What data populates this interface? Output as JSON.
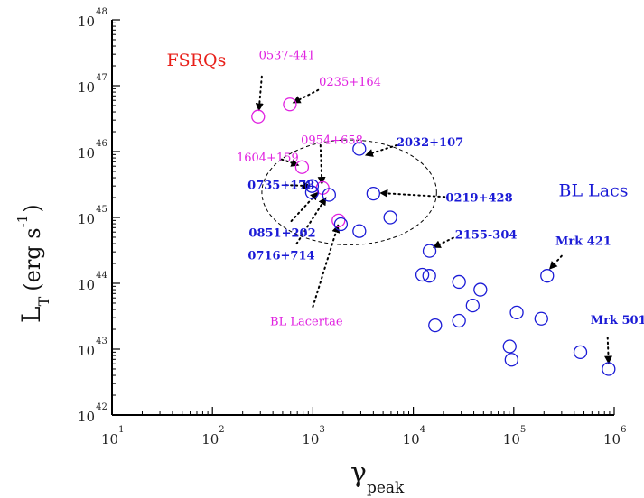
{
  "chart_data": {
    "type": "scatter",
    "title": "",
    "xlabel": "γ",
    "xlabel_sub": "peak",
    "ylabel": "L",
    "ylabel_sub": "T",
    "ylabel_unit_pre": "(erg s",
    "ylabel_unit_exp": "-1",
    "ylabel_unit_post": ")",
    "xscale": "log",
    "yscale": "log",
    "xlim": [
      10,
      1000000
    ],
    "ylim": [
      1e+42,
      1e+48
    ],
    "x_ticks": [
      {
        "base": "10",
        "exp": "1"
      },
      {
        "base": "10",
        "exp": "2"
      },
      {
        "base": "10",
        "exp": "3"
      },
      {
        "base": "10",
        "exp": "4"
      },
      {
        "base": "10",
        "exp": "5"
      },
      {
        "base": "10",
        "exp": "6"
      }
    ],
    "y_ticks": [
      {
        "base": "10",
        "exp": "42"
      },
      {
        "base": "10",
        "exp": "43"
      },
      {
        "base": "10",
        "exp": "44"
      },
      {
        "base": "10",
        "exp": "45"
      },
      {
        "base": "10",
        "exp": "46"
      },
      {
        "base": "10",
        "exp": "47"
      },
      {
        "base": "10",
        "exp": "48"
      }
    ],
    "colors": {
      "fsrq": "#e020e0",
      "bl": "#1a1ad6",
      "fsrq_label": "#e8201a",
      "axis": "#000000"
    },
    "series": [
      {
        "name": "FSRQs",
        "color": "#e020e0",
        "points": [
          {
            "x": 285,
            "y": 3.4e+46
          },
          {
            "x": 590,
            "y": 5.2e+46
          },
          {
            "x": 780,
            "y": 5.8e+45
          },
          {
            "x": 1250,
            "y": 2.8e+45
          },
          {
            "x": 1800,
            "y": 9e+44
          }
        ]
      },
      {
        "name": "BL Lacs",
        "color": "#1a1ad6",
        "points": [
          {
            "x": 2900,
            "y": 1.1e+46
          },
          {
            "x": 4000,
            "y": 2.3e+45
          },
          {
            "x": 980,
            "y": 3e+45
          },
          {
            "x": 980,
            "y": 2.4e+45
          },
          {
            "x": 1450,
            "y": 2.2e+45
          },
          {
            "x": 1900,
            "y": 7.9e+44
          },
          {
            "x": 2900,
            "y": 6.2e+44
          },
          {
            "x": 5900,
            "y": 1e+45
          },
          {
            "x": 14500,
            "y": 3.1e+44
          },
          {
            "x": 12300,
            "y": 1.35e+44
          },
          {
            "x": 14400,
            "y": 1.3e+44
          },
          {
            "x": 16500,
            "y": 2.3e+43
          },
          {
            "x": 28500,
            "y": 1.05e+44
          },
          {
            "x": 28500,
            "y": 2.7e+43
          },
          {
            "x": 39000,
            "y": 4.6e+43
          },
          {
            "x": 46500,
            "y": 8e+43
          },
          {
            "x": 91000,
            "y": 1.1e+43
          },
          {
            "x": 95000,
            "y": 6.9e+42
          },
          {
            "x": 107000,
            "y": 3.6e+43
          },
          {
            "x": 188000,
            "y": 2.9e+43
          },
          {
            "x": 215000,
            "y": 1.3e+44
          },
          {
            "x": 460000,
            "y": 9e+42
          },
          {
            "x": 880000,
            "y": 5e+42
          }
        ]
      }
    ],
    "annotations": [
      {
        "text": "0537-441",
        "group": "fsrq",
        "anchor": "start",
        "tx": 290,
        "ty": 2.55e+47,
        "from_x": 310,
        "from_y": 1.38e+47,
        "to_x": 290,
        "to_y": 4.2e+46
      },
      {
        "text": "0235+164",
        "group": "fsrq",
        "anchor": "start",
        "tx": 1150,
        "ty": 1e+47,
        "from_x": 1130,
        "from_y": 8.6e+46,
        "to_x": 635,
        "to_y": 5.5e+46
      },
      {
        "text": "0954+658",
        "group": "fsrq",
        "anchor": "start",
        "tx": 760,
        "ty": 1.3e+46,
        "from_x": 1190,
        "from_y": 1.25e+46,
        "to_x": 1230,
        "to_y": 3.2e+45
      },
      {
        "text": "1604+159",
        "group": "fsrq",
        "anchor": "start",
        "tx": 174,
        "ty": 7.1e+45,
        "from_x": 490,
        "from_y": 7.6e+45,
        "to_x": 720,
        "to_y": 6.2e+45
      },
      {
        "text": "0735+178",
        "group": "bl",
        "anchor": "start",
        "tx": 224,
        "ty": 2.7e+45,
        "from_x": 540,
        "from_y": 3.1e+45,
        "to_x": 945,
        "to_y": 3e+45
      },
      {
        "text": "0851+202",
        "group": "bl",
        "anchor": "start",
        "tx": 230,
        "ty": 5.1e+44,
        "from_x": 610,
        "from_y": 8.8e+44,
        "to_x": 1120,
        "to_y": 2.4e+45
      },
      {
        "text": "0716+714",
        "group": "bl",
        "anchor": "start",
        "tx": 225,
        "ty": 2.3e+44,
        "from_x": 690,
        "from_y": 4e+44,
        "to_x": 1350,
        "to_y": 2e+45
      },
      {
        "text": "BL Lacertae",
        "group": "fsrq",
        "anchor": "start",
        "tx": 375,
        "ty": 2.3e+43,
        "from_x": 1000,
        "from_y": 4.4e+43,
        "to_x": 1780,
        "to_y": 7.6e+44
      },
      {
        "text": "2032+107",
        "group": "bl",
        "anchor": "start",
        "tx": 6800,
        "ty": 1.2e+46,
        "from_x": 6850,
        "from_y": 1.25e+46,
        "to_x": 3350,
        "to_y": 8.8e+45
      },
      {
        "text": "0219+428",
        "group": "bl",
        "anchor": "start",
        "tx": 21000,
        "ty": 1.75e+45,
        "from_x": 20500,
        "from_y": 2.05e+45,
        "to_x": 4700,
        "to_y": 2.35e+45
      },
      {
        "text": "2155-304",
        "group": "bl",
        "anchor": "start",
        "tx": 26000,
        "ty": 4.8e+44,
        "from_x": 25000,
        "from_y": 4.9e+44,
        "to_x": 15800,
        "to_y": 3.5e+44
      },
      {
        "text": "Mrk 421",
        "group": "bl",
        "anchor": "start",
        "tx": 260000,
        "ty": 3.8e+44,
        "from_x": 300000,
        "from_y": 2.6e+44,
        "to_x": 228000,
        "to_y": 1.65e+44
      },
      {
        "text": "Mrk 501",
        "group": "bl",
        "anchor": "start",
        "tx": 580000,
        "ty": 2.4e+43,
        "from_x": 860000,
        "from_y": 1.5e+43,
        "to_x": 880000,
        "to_y": 6.1e+42
      }
    ],
    "labels": [
      {
        "text": "FSRQs",
        "color": "#e8201a",
        "x": 35,
        "y": 2e+47
      },
      {
        "text": "BL Lacs",
        "color": "#1a1ad6",
        "x": 280000,
        "y": 2.1e+45
      }
    ],
    "ellipse": {
      "center_x": 2300,
      "center_y": 2.4e+45,
      "x_min": 310,
      "x_max": 17000,
      "y_min": 3.7e+44,
      "y_max": 1.45e+46
    }
  }
}
